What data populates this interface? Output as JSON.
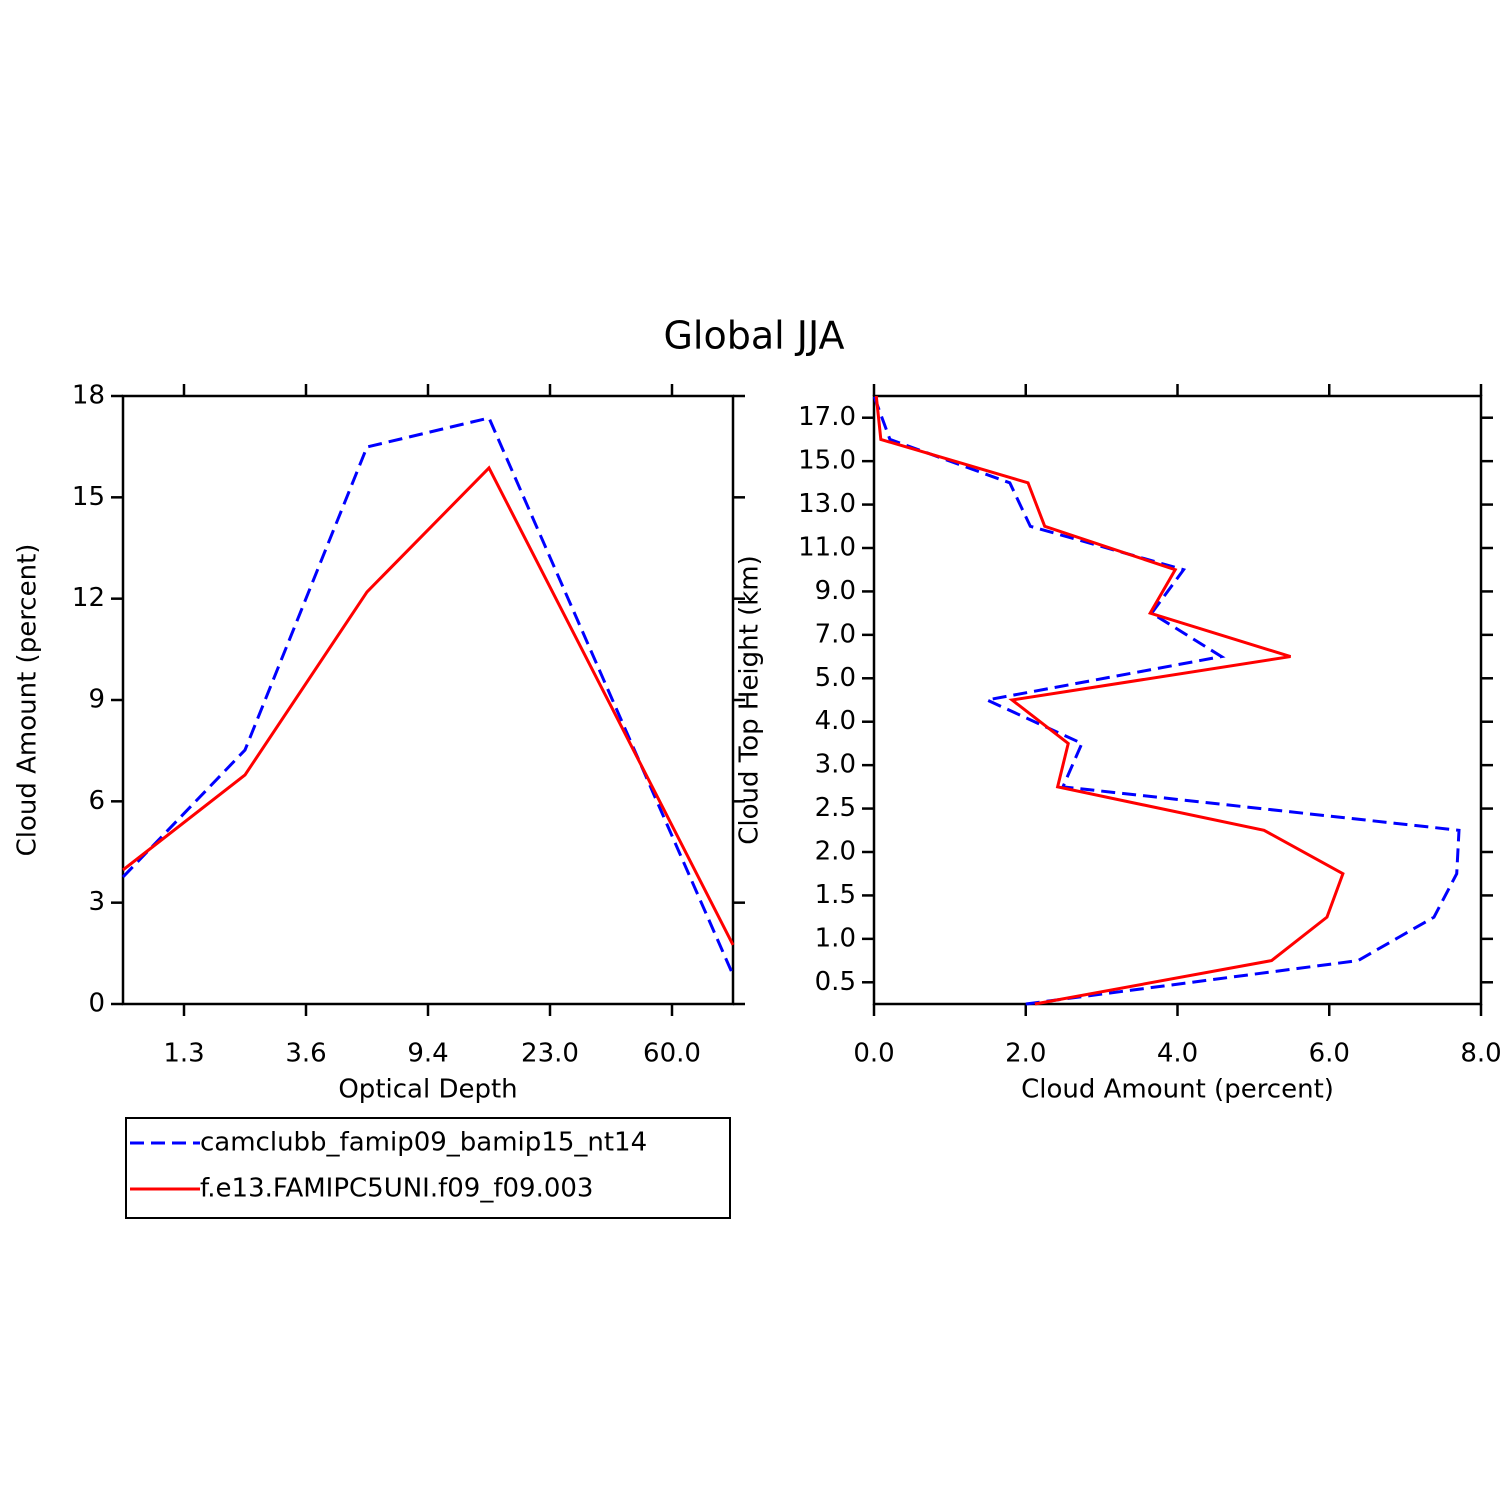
{
  "title": "Global JJA",
  "chart_data": [
    {
      "type": "line",
      "xlabel": "Optical Depth",
      "ylabel": "Cloud Amount (percent)",
      "x": [
        0,
        1,
        2,
        3,
        4,
        5
      ],
      "xlim": [
        0,
        5
      ],
      "xticks": [
        {
          "value": 0.5,
          "label": "1.3"
        },
        {
          "value": 1.5,
          "label": "3.6"
        },
        {
          "value": 2.5,
          "label": "9.4"
        },
        {
          "value": 3.5,
          "label": "23.0"
        },
        {
          "value": 4.5,
          "label": "60.0"
        }
      ],
      "ylim": [
        0,
        18
      ],
      "yticks": [
        0,
        3,
        6,
        9,
        12,
        15,
        18
      ],
      "legend": "bottom",
      "series": [
        {
          "name": "camclubb_famip09_bamip15_nt14",
          "color": "#0000ff",
          "dash": true,
          "values": [
            3.76,
            7.52,
            16.49,
            17.35,
            9.1,
            0.86
          ]
        },
        {
          "name": "f.e13.FAMIPC5UNI.f09_f09.003",
          "color": "#ff0000",
          "dash": false,
          "values": [
            3.97,
            6.78,
            12.2,
            15.87,
            8.82,
            1.75
          ]
        }
      ]
    },
    {
      "type": "line",
      "xlabel": "Cloud Amount (percent)",
      "ylabel": "Cloud Top Height (km)",
      "y": [
        0,
        1,
        2,
        3,
        4,
        5,
        6,
        7,
        8,
        9,
        10,
        11,
        12,
        13,
        14
      ],
      "ylim": [
        0,
        14
      ],
      "yticks": [
        0.5,
        {
          "value": 1.5,
          "label": "1.0"
        },
        {
          "value": 2.5,
          "label": "1.5"
        },
        {
          "value": 3.5,
          "label": "2.0"
        },
        {
          "value": 4.5,
          "label": "2.5"
        },
        {
          "value": 5.5,
          "label": "3.0"
        },
        {
          "value": 6.5,
          "label": "4.0"
        },
        {
          "value": 7.5,
          "label": "5.0"
        },
        {
          "value": 8.5,
          "label": "7.0"
        },
        {
          "value": 9.5,
          "label": "9.0"
        },
        {
          "value": 10.5,
          "label": "11.0"
        },
        {
          "value": 11.5,
          "label": "13.0"
        },
        {
          "value": 12.5,
          "label": "15.0"
        },
        {
          "value": 13.5,
          "label": "17.0"
        }
      ],
      "xlim": [
        0,
        8
      ],
      "xticks": [
        {
          "value": 0,
          "label": "0.0"
        },
        {
          "value": 2,
          "label": "2.0"
        },
        {
          "value": 4,
          "label": "4.0"
        },
        {
          "value": 6,
          "label": "6.0"
        },
        {
          "value": 8,
          "label": "8.0"
        }
      ],
      "series": [
        {
          "color": "#0000ff",
          "dash": true,
          "values": [
            2.0,
            6.38,
            7.38,
            7.68,
            7.71,
            2.49,
            2.74,
            1.49,
            4.58,
            3.66,
            4.08,
            2.06,
            1.79,
            0.21,
            0.0
          ]
        },
        {
          "color": "#ff0000",
          "dash": false,
          "values": [
            2.12,
            5.24,
            5.97,
            6.18,
            5.14,
            2.42,
            2.56,
            1.82,
            5.49,
            3.64,
            3.97,
            2.25,
            2.03,
            0.09,
            0.03
          ]
        }
      ]
    }
  ]
}
